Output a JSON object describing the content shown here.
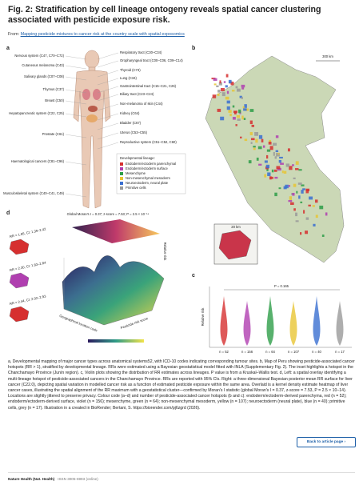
{
  "header": {
    "title": "Fig. 2: Stratification by cell lineage ontogeny reveals spatial cancer clustering associated with pesticide exposure risk.",
    "source_prefix": "From: ",
    "source_link": "Mapping pesticide mixtures to cancer risk at the country scale with spatial exposomics"
  },
  "panel_labels": [
    "a",
    "b",
    "c",
    "d"
  ],
  "body_labels": {
    "left": [
      "Nervous system (C47, C70–C72)",
      "Cutaneous melanoma (C43)",
      "Salivary glands (C07–C08)",
      "Thymus (C37)",
      "Breast (C50)",
      "Hepatopancreatic system (C22, C25)",
      "Prostate (C61)",
      "Haematological cancers (C81–C96)",
      "Musculoskeletal system (C40–C41, C49)"
    ],
    "right": [
      "Respiratory tract (C30–C34)",
      "Oropharyngeal tract (C00–C06, C09–C14)",
      "Thyroid (C73)",
      "Lung (C34)",
      "Gastrointestinal tract (C15–C21, C26)",
      "Biliary tract (C23–C24)",
      "Non-melanoma of skin (C44)",
      "Kidney (C64)",
      "Bladder (C67)",
      "Uterus (C53–C55)",
      "Reproductive system (C51–C52, C60)"
    ]
  },
  "legend": {
    "title": "Developmental lineage:",
    "items": [
      {
        "name": "Endoderm/ectoderm parenchymal",
        "color": "#d62f2f"
      },
      {
        "name": "Endoderm/ectoderm surface",
        "color": "#b03fb0"
      },
      {
        "name": "Mesenchyme",
        "color": "#2e9e48"
      },
      {
        "name": "Non-mesenchymal mesoderm",
        "color": "#e8c534"
      },
      {
        "name": "Neuroectoderm, neural plate",
        "color": "#3a6fd1"
      },
      {
        "name": "Primitive cells",
        "color": "#9a9a9a"
      }
    ]
  },
  "map": {
    "scale": "300 km",
    "inset_scale": "20 km"
  },
  "surface": {
    "title": "Global Moran's I = 0.37; z-score = 7.53; P = 2.5 × 10⁻¹⁴",
    "z_label": "Relative risk",
    "x_label": "Geographical location code",
    "y_label": "Pesticide risk score",
    "callouts": [
      "RR = 1.85, CI: 1.39–2.42",
      "RR = 2.30, CI: 1.83–2.84",
      "RR = 2.44, CI: 2.02–2.93"
    ]
  },
  "violin": {
    "p_label": "P = 0.165",
    "y_label": "Relative risk",
    "n_labels": [
      "n = 52",
      "n = 156",
      "n = 64",
      "n = 107",
      "n = 40",
      "n = 17"
    ]
  },
  "caption": "a, Developmental mapping of major cancer types across anatomical systems52, with ICD-10 codes indicating corresponding tumour sites. b, Map of Peru showing pesticide-associated cancer hotspots (RR > 1), stratified by developmental lineage. RRs were estimated using a Bayesian geostatistical model fitted with INLA (Supplementary Fig. 2). The inset highlights a hotspot in the Chanchamayo Province (Junín region). c, Violin plots showing the distribution of RR estimates across lineages. P value is from a Kruskal–Wallis test. d, Left: a spatial overlay identifying a multi-lineage hotspot of pesticide-associated cancers in the Chanchamayo Province. RRs are reported with 95% CIs. Right: a three-dimensional Bayesian posterior mean RR surface for liver cancer (C22.0), depicting spatial variation in modelled cancer risk as a function of estimated pesticide exposure within the same area. Overlaid is a kernel density estimate heatmap of liver cancer cases, illustrating the spatial alignment of the RR maximum with a geostatistical cluster—confirmed by Moran's I statistic (global Moran's I = 0.37, z-score = 7.53, P = 2.5 × 10−14). Locations are slightly jittered to preserve privacy. Colour code (a–d) and number of pesticide-associated cancer hotspots (b and c): endoderm/ectoderm-derived parenchyma, red (n = 52); endoderm/ectoderm-derived surface, violet (n = 156); mesenchyme, green (n = 64); non-mesenchymal mesoderm, yellow (n = 107); neuroectoderm (neural plate), blue (n = 40); primitive cells, grey (n = 17). Illustration in a created in BioRender; Bertani, S. https://biorender.com/pj6zgrd (2026).",
  "button": "Back to article page ›",
  "footer": {
    "journal": "Nature Health (Nat. Health)",
    "issn": "ISSN 3005-6993 (online)"
  }
}
